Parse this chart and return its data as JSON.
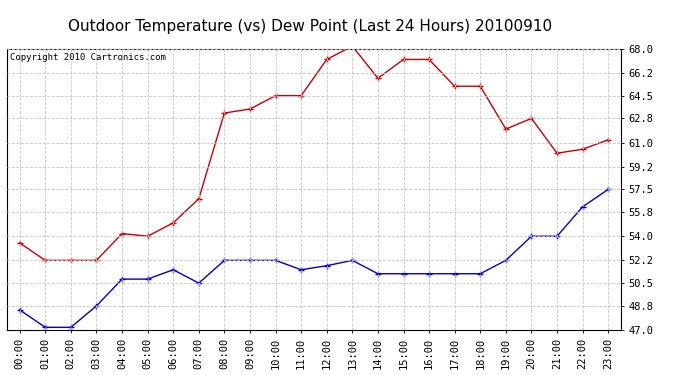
{
  "title": "Outdoor Temperature (vs) Dew Point (Last 24 Hours) 20100910",
  "copyright_text": "Copyright 2010 Cartronics.com",
  "x_labels": [
    "00:00",
    "01:00",
    "02:00",
    "03:00",
    "04:00",
    "05:00",
    "06:00",
    "07:00",
    "08:00",
    "09:00",
    "10:00",
    "11:00",
    "12:00",
    "13:00",
    "14:00",
    "15:00",
    "16:00",
    "17:00",
    "18:00",
    "19:00",
    "20:00",
    "21:00",
    "22:00",
    "23:00"
  ],
  "temp_values": [
    53.5,
    52.2,
    52.2,
    52.2,
    54.2,
    54.0,
    55.0,
    56.8,
    63.2,
    63.5,
    64.5,
    64.5,
    67.2,
    68.2,
    65.8,
    67.2,
    67.2,
    65.2,
    65.2,
    62.0,
    62.8,
    60.2,
    60.5,
    61.2
  ],
  "dew_values": [
    48.5,
    47.2,
    47.2,
    48.8,
    50.8,
    50.8,
    51.5,
    50.5,
    52.2,
    52.2,
    52.2,
    51.5,
    51.8,
    52.2,
    51.2,
    51.2,
    51.2,
    51.2,
    51.2,
    52.2,
    54.0,
    54.0,
    56.2,
    57.5
  ],
  "temp_color": "#cc0000",
  "dew_color": "#0000cc",
  "ylim_min": 47.0,
  "ylim_max": 68.0,
  "yticks": [
    47.0,
    48.8,
    50.5,
    52.2,
    54.0,
    55.8,
    57.5,
    59.2,
    61.0,
    62.8,
    64.5,
    66.2,
    68.0
  ],
  "background_color": "#ffffff",
  "plot_bg_color": "#ffffff",
  "grid_color": "#c8c8c8",
  "title_fontsize": 11,
  "tick_fontsize": 7.5,
  "copyright_fontsize": 6.5
}
